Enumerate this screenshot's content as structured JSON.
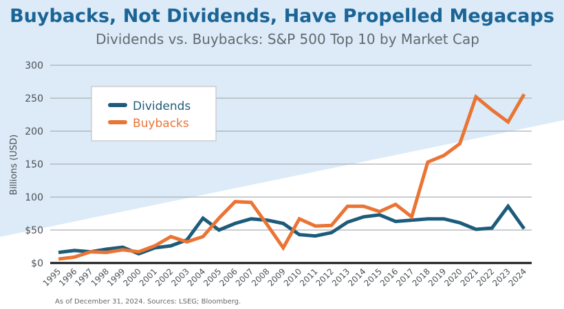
{
  "chart_data": {
    "type": "line",
    "title": "Buybacks, Not Dividends, Have Propelled Megacaps",
    "subtitle": "Dividends vs. Buybacks: S&P 500 Top 10 by Market Cap",
    "xlabel": "",
    "ylabel": "Billions (USD)",
    "ylim": [
      0,
      300
    ],
    "yticks": [
      0,
      50,
      100,
      150,
      200,
      250,
      300
    ],
    "ytick_labels": [
      "$0",
      "$50",
      "100",
      "150",
      "200",
      "250",
      "300"
    ],
    "grid": true,
    "legend_position": "top-left",
    "x": [
      "1995",
      "1996",
      "1997",
      "1998",
      "1999",
      "2000",
      "2001",
      "2002",
      "2003",
      "2004",
      "2005",
      "2006",
      "2007",
      "2008",
      "2009",
      "2010",
      "2011",
      "2012",
      "2013",
      "2014",
      "2015",
      "2016",
      "2017",
      "2018",
      "2019",
      "2020",
      "2021",
      "2022",
      "2023",
      "2024"
    ],
    "series": [
      {
        "name": "Dividends",
        "color": "#1d5b7a",
        "values": [
          16,
          19,
          17,
          21,
          24,
          14,
          23,
          26,
          35,
          68,
          50,
          60,
          67,
          65,
          60,
          43,
          41,
          46,
          62,
          70,
          73,
          63,
          65,
          67,
          67,
          61,
          51,
          53,
          86,
          52
        ]
      },
      {
        "name": "Buybacks",
        "color": "#ea7434",
        "values": [
          6,
          9,
          17,
          16,
          20,
          17,
          26,
          40,
          32,
          40,
          68,
          93,
          92,
          58,
          23,
          67,
          56,
          57,
          86,
          86,
          78,
          89,
          70,
          153,
          163,
          181,
          252,
          232,
          214,
          256
        ]
      }
    ],
    "source_note": "As of December 31, 2024. Sources: LSEG; Bloomberg."
  },
  "colors": {
    "background_band": "#dcebf7",
    "title": "#1a6496"
  }
}
